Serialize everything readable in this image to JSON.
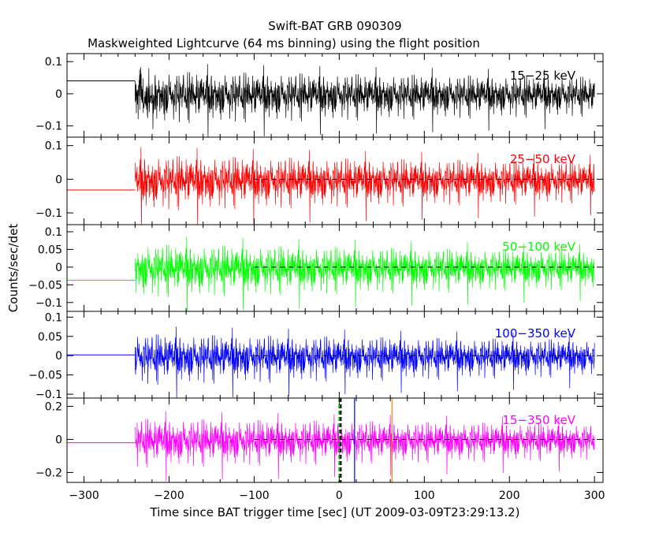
{
  "figure": {
    "title": "Swift-BAT GRB 090309",
    "subtitle": "Maskweighted Lightcurve (64 ms binning) using the flight position",
    "ylabel": "Counts/sec/det",
    "xlabel": "Time since BAT trigger time [sec] (UT 2009-03-09T23:29:13.2)"
  },
  "chart_data": [
    {
      "type": "line",
      "name": "15-25 keV",
      "label": "15−25 keV",
      "color": "#000000",
      "x_range": [
        -320,
        310
      ],
      "ylim": [
        -0.135,
        0.125
      ],
      "yticks": [
        -0.1,
        0,
        0.1
      ],
      "ytick_labels": [
        "−0.1",
        "0",
        "0.1"
      ],
      "pre_level": 0.04,
      "data_start": -240,
      "data_end": 300,
      "noise_sigma_early": 0.036,
      "noise_sigma_late": 0.027,
      "zero_line_start": null
    },
    {
      "type": "line",
      "name": "25-50 keV",
      "label": "25−50 keV",
      "color": "#ff0000",
      "x_range": [
        -320,
        310
      ],
      "ylim": [
        -0.135,
        0.125
      ],
      "yticks": [
        -0.1,
        0,
        0.1
      ],
      "ytick_labels": [
        "−0.1",
        "0",
        "0.1"
      ],
      "pre_level": -0.032,
      "data_start": -240,
      "data_end": 300,
      "noise_sigma_early": 0.036,
      "noise_sigma_late": 0.027,
      "zero_line_start": -100
    },
    {
      "type": "line",
      "name": "50-100 keV",
      "label": "50−100 keV",
      "color": "#00ff00",
      "x_range": [
        -320,
        310
      ],
      "ylim": [
        -0.125,
        0.12
      ],
      "yticks": [
        -0.1,
        -0.05,
        0,
        0.05,
        0.1
      ],
      "ytick_labels": [
        "−0.1",
        "−0.05",
        "0",
        "0.05",
        "0.1"
      ],
      "pre_level": -0.037,
      "data_start": -240,
      "data_end": 300,
      "noise_sigma_early": 0.033,
      "noise_sigma_late": 0.024,
      "zero_line_start": -100
    },
    {
      "type": "line",
      "name": "100-350 keV",
      "label": "100−350 keV",
      "color": "#0000ff",
      "x_range": [
        -320,
        310
      ],
      "ylim": [
        -0.11,
        0.115
      ],
      "yticks": [
        -0.1,
        -0.05,
        0,
        0.05,
        0.1
      ],
      "ytick_labels": [
        "−0.1",
        "−0.05",
        "0",
        "0.05",
        "0.1"
      ],
      "pre_level": 0.002,
      "data_start": -240,
      "data_end": 300,
      "noise_sigma_early": 0.029,
      "noise_sigma_late": 0.021,
      "zero_line_start": -100
    },
    {
      "type": "line",
      "name": "15-350 keV",
      "label": "15−350 keV",
      "color": "#ff00ff",
      "x_range": [
        -320,
        310
      ],
      "ylim": [
        -0.26,
        0.25
      ],
      "yticks": [
        -0.2,
        0,
        0.2
      ],
      "ytick_labels": [
        "−0.2",
        "0",
        "0.2"
      ],
      "xticks": [
        -300,
        -200,
        -100,
        0,
        100,
        200,
        300
      ],
      "xtick_labels": [
        "−300",
        "−200",
        "−100",
        "0",
        "100",
        "200",
        "300"
      ],
      "pre_level": -0.02,
      "data_start": -240,
      "data_end": 300,
      "noise_sigma_early": 0.065,
      "noise_sigma_late": 0.048,
      "zero_line_start": -100,
      "markers": [
        {
          "x": 0,
          "color": "#00aa00",
          "style": "dashed"
        },
        {
          "x": 0,
          "color": "#000000",
          "style": "dashed"
        },
        {
          "x": 18,
          "color": "#0000ff",
          "style": "solid"
        },
        {
          "x": 62,
          "color": "#ff8000",
          "style": "solid"
        }
      ]
    }
  ]
}
